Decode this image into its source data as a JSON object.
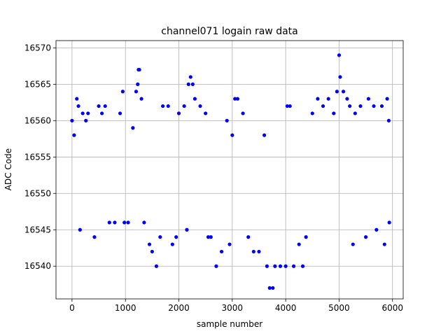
{
  "chart_data": {
    "type": "scatter",
    "title": "channel071 logain raw data",
    "xlabel": "sample number",
    "ylabel": "ADC Code",
    "xlim": [
      -300,
      6200
    ],
    "ylim": [
      16535.5,
      16571
    ],
    "xticks": [
      "0",
      "1000",
      "2000",
      "3000",
      "4000",
      "5000",
      "6000"
    ],
    "yticks": [
      "16540",
      "16545",
      "16550",
      "16555",
      "16560",
      "16565",
      "16570"
    ],
    "grid": true,
    "marker_color": "#0000ff",
    "series": [
      {
        "name": "",
        "points": [
          [
            0,
            16560
          ],
          [
            40,
            16558
          ],
          [
            90,
            16563
          ],
          [
            120,
            16562
          ],
          [
            150,
            16545
          ],
          [
            200,
            16561
          ],
          [
            260,
            16560
          ],
          [
            300,
            16561
          ],
          [
            420,
            16544
          ],
          [
            500,
            16562
          ],
          [
            560,
            16561
          ],
          [
            620,
            16562
          ],
          [
            700,
            16546
          ],
          [
            800,
            16546
          ],
          [
            900,
            16561
          ],
          [
            950,
            16564
          ],
          [
            980,
            16546
          ],
          [
            1050,
            16546
          ],
          [
            1140,
            16559
          ],
          [
            1200,
            16564
          ],
          [
            1230,
            16565
          ],
          [
            1245,
            16567
          ],
          [
            1260,
            16567
          ],
          [
            1300,
            16563
          ],
          [
            1350,
            16546
          ],
          [
            1450,
            16543
          ],
          [
            1500,
            16542
          ],
          [
            1580,
            16540
          ],
          [
            1650,
            16544
          ],
          [
            1700,
            16562
          ],
          [
            1800,
            16562
          ],
          [
            1880,
            16543
          ],
          [
            1950,
            16544
          ],
          [
            2000,
            16561
          ],
          [
            2100,
            16562
          ],
          [
            2150,
            16545
          ],
          [
            2180,
            16565
          ],
          [
            2220,
            16566
          ],
          [
            2260,
            16565
          ],
          [
            2300,
            16563
          ],
          [
            2400,
            16562
          ],
          [
            2500,
            16561
          ],
          [
            2550,
            16544
          ],
          [
            2600,
            16544
          ],
          [
            2700,
            16540
          ],
          [
            2800,
            16542
          ],
          [
            2900,
            16560
          ],
          [
            2950,
            16543
          ],
          [
            3000,
            16558
          ],
          [
            3050,
            16563
          ],
          [
            3100,
            16563
          ],
          [
            3200,
            16561
          ],
          [
            3300,
            16544
          ],
          [
            3400,
            16542
          ],
          [
            3500,
            16542
          ],
          [
            3600,
            16558
          ],
          [
            3650,
            16540
          ],
          [
            3700,
            16537
          ],
          [
            3760,
            16537
          ],
          [
            3800,
            16540
          ],
          [
            3900,
            16540
          ],
          [
            4000,
            16540
          ],
          [
            4030,
            16562
          ],
          [
            4080,
            16562
          ],
          [
            4150,
            16540
          ],
          [
            4250,
            16543
          ],
          [
            4320,
            16540
          ],
          [
            4380,
            16544
          ],
          [
            4500,
            16561
          ],
          [
            4600,
            16563
          ],
          [
            4700,
            16562
          ],
          [
            4800,
            16563
          ],
          [
            4900,
            16561
          ],
          [
            4960,
            16564
          ],
          [
            5000,
            16569
          ],
          [
            5020,
            16566
          ],
          [
            5080,
            16564
          ],
          [
            5150,
            16563
          ],
          [
            5200,
            16562
          ],
          [
            5260,
            16543
          ],
          [
            5300,
            16561
          ],
          [
            5400,
            16562
          ],
          [
            5500,
            16544
          ],
          [
            5550,
            16563
          ],
          [
            5650,
            16562
          ],
          [
            5700,
            16545
          ],
          [
            5800,
            16562
          ],
          [
            5850,
            16543
          ],
          [
            5900,
            16563
          ],
          [
            5930,
            16560
          ],
          [
            5940,
            16546
          ]
        ]
      }
    ]
  }
}
